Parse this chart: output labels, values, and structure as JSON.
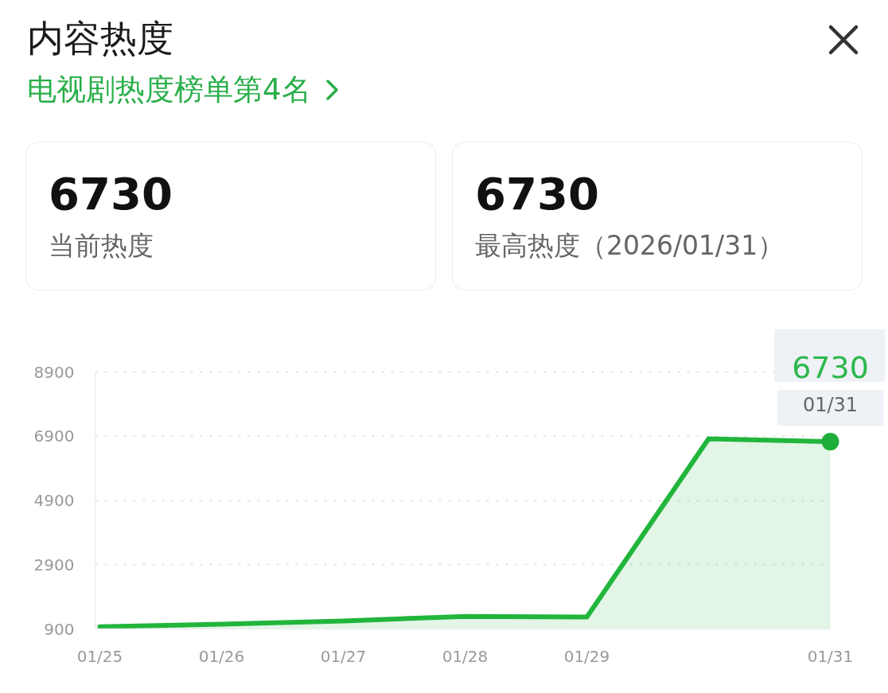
{
  "chart_data": {
    "type": "area",
    "title": "内容热度",
    "subtitle": "电视剧热度榜单第4名",
    "annotations": [
      "6730",
      "当前热度",
      "6730",
      "最高热度（2026/01/31）",
      {
        "text": "6730",
        "x": "01/31",
        "y": 6730
      },
      {
        "text": "01/31",
        "x": "01/31",
        "y": 6730
      }
    ],
    "categories": [
      "01/25",
      "01/26",
      "01/27",
      "01/28",
      "01/29",
      null,
      "01/31"
    ],
    "series": [
      {
        "color": "#21b53c",
        "values": [
          970,
          1050,
          1150,
          1290,
          1270,
          6820,
          6730
        ]
      },
      {
        "type": "scatter",
        "color": "#1fae3a",
        "marker": "circle",
        "x": [
          "01/31"
        ],
        "values": [
          6730
        ]
      }
    ],
    "ylim": [
      900,
      8900
    ],
    "yticks": [
      900,
      2900,
      4900,
      6900,
      8900
    ],
    "grid": "y"
  }
}
